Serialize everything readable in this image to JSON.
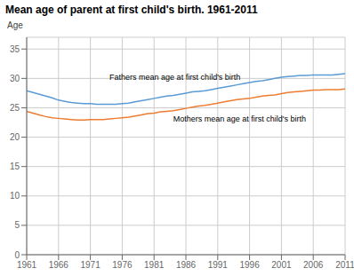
{
  "chart_data": {
    "type": "line",
    "title": "Mean age of parent at first child's birth. 1961-2011",
    "ylabel": "Age",
    "x": [
      1961,
      1962,
      1963,
      1964,
      1965,
      1966,
      1967,
      1968,
      1969,
      1970,
      1971,
      1972,
      1973,
      1974,
      1975,
      1976,
      1977,
      1978,
      1979,
      1980,
      1981,
      1982,
      1983,
      1984,
      1985,
      1986,
      1987,
      1988,
      1989,
      1990,
      1991,
      1992,
      1993,
      1994,
      1995,
      1996,
      1997,
      1998,
      1999,
      2000,
      2001,
      2002,
      2003,
      2004,
      2005,
      2006,
      2007,
      2008,
      2009,
      2010,
      2011
    ],
    "series": [
      {
        "color": "#5B9BD5",
        "values": [
          27.9,
          27.6,
          27.3,
          27.0,
          26.7,
          26.3,
          26.1,
          25.9,
          25.8,
          25.7,
          25.7,
          25.6,
          25.6,
          25.6,
          25.6,
          25.7,
          25.8,
          26.0,
          26.2,
          26.4,
          26.6,
          26.8,
          27.0,
          27.1,
          27.3,
          27.5,
          27.7,
          27.8,
          27.9,
          28.1,
          28.3,
          28.5,
          28.7,
          28.9,
          29.1,
          29.3,
          29.5,
          29.6,
          29.8,
          30.0,
          30.2,
          30.3,
          30.4,
          30.5,
          30.5,
          30.6,
          30.6,
          30.6,
          30.6,
          30.7,
          30.8
        ]
      },
      {
        "color": "#ED7D31",
        "values": [
          24.4,
          24.1,
          23.8,
          23.5,
          23.3,
          23.2,
          23.1,
          23.0,
          22.9,
          22.9,
          23.0,
          23.0,
          23.0,
          23.1,
          23.2,
          23.3,
          23.4,
          23.6,
          23.8,
          24.0,
          24.1,
          24.3,
          24.4,
          24.5,
          24.7,
          24.9,
          25.1,
          25.3,
          25.4,
          25.6,
          25.8,
          26.0,
          26.2,
          26.4,
          26.5,
          26.6,
          26.8,
          27.0,
          27.1,
          27.2,
          27.4,
          27.6,
          27.7,
          27.8,
          27.9,
          28.0,
          28.0,
          28.1,
          28.1,
          28.1,
          28.2
        ]
      }
    ],
    "annotations": [
      {
        "text": "Fathers mean age at first child's birth",
        "x": 1974,
        "y": 29.3
      },
      {
        "text": "Mothers mean age at first child's birth",
        "x": 1984,
        "y": 24.05
      }
    ],
    "xlim": [
      1961,
      2011
    ],
    "ylim": [
      0,
      37
    ],
    "xticks": [
      1961,
      1966,
      1971,
      1976,
      1981,
      1986,
      1991,
      1996,
      2001,
      2006,
      2011
    ],
    "yticks": [
      0,
      5,
      10,
      15,
      20,
      25,
      30,
      35
    ],
    "grid": true
  }
}
